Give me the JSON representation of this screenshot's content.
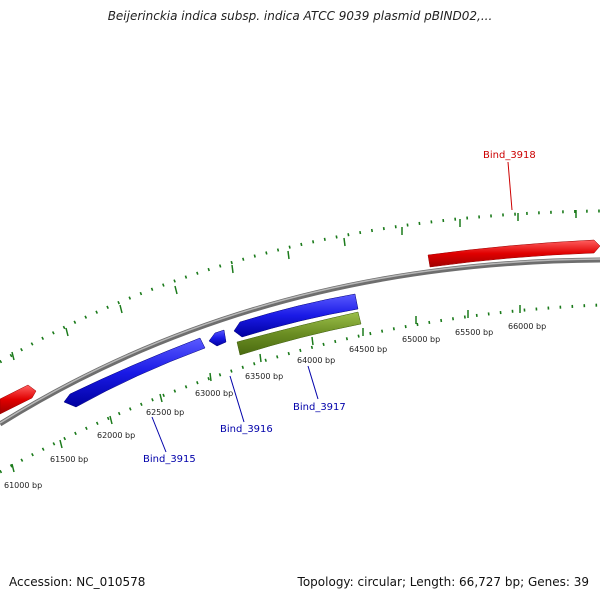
{
  "title": "Beijerinckia indica subsp. indica ATCC 9039 plasmid pBIND02,...",
  "footer": {
    "accession": "Accession: NC_010578",
    "summary": "Topology: circular; Length: 66,727 bp; Genes: 39"
  },
  "scale_labels": [
    "61000 bp",
    "61500 bp",
    "62000 bp",
    "62500 bp",
    "63000 bp",
    "63500 bp",
    "64000 bp",
    "64500 bp",
    "65000 bp",
    "65500 bp",
    "66000 bp"
  ],
  "genes": [
    {
      "name": "Bind_3915",
      "color": "#0000aa"
    },
    {
      "name": "Bind_3916",
      "color": "#0000aa"
    },
    {
      "name": "Bind_3917",
      "color": "#0000aa"
    },
    {
      "name": "Bind_3918",
      "color": "#cc0000"
    }
  ],
  "colors": {
    "backbone": "#8a8a8a",
    "forward_gene": "#e61a1a",
    "reverse_gene": "#1a1ae6",
    "rna_gene": "#6b8e23",
    "ticks": "#1a7a1a"
  }
}
